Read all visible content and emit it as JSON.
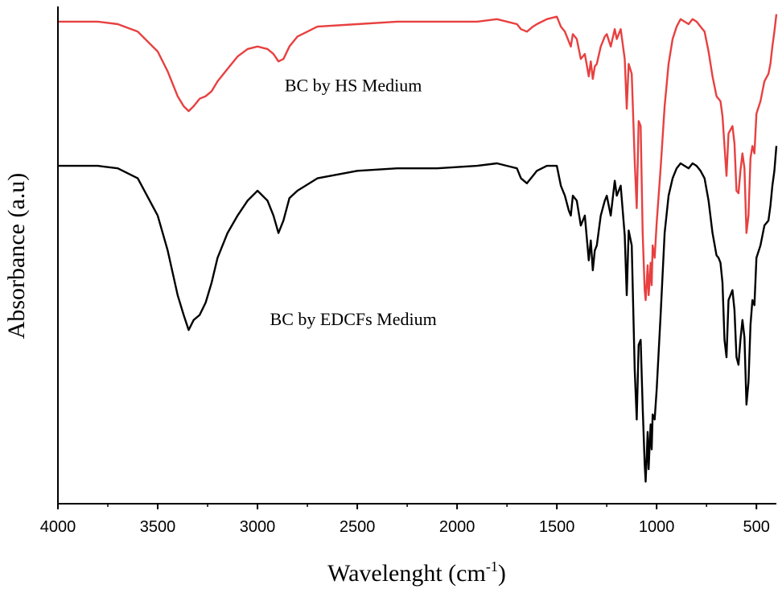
{
  "chart_data": {
    "type": "line",
    "title": "",
    "xlabel_main": "Wavelenght (cm",
    "xlabel_sup": "-1",
    "xlabel_close": ")",
    "ylabel": "Absorbance (a.u)",
    "xlim": [
      4000,
      400
    ],
    "x_reversed": true,
    "y_tick_labels": false,
    "xticks": [
      4000,
      3500,
      3000,
      2500,
      2000,
      1500,
      1000,
      500
    ],
    "grid": false,
    "annotations": [
      {
        "text": "BC by HS Medium",
        "x": 2520,
        "y": 1.62
      },
      {
        "text": "BC by EDCFs Medium",
        "x": 2520,
        "y": 0.68
      }
    ],
    "series": [
      {
        "name": "BC by HS Medium",
        "color": "#e84040",
        "x": [
          4000,
          3800,
          3700,
          3600,
          3500,
          3450,
          3400,
          3370,
          3345,
          3320,
          3290,
          3260,
          3230,
          3200,
          3150,
          3100,
          3050,
          3000,
          2950,
          2920,
          2895,
          2870,
          2840,
          2800,
          2700,
          2500,
          2300,
          2100,
          1900,
          1800,
          1700,
          1680,
          1650,
          1620,
          1600,
          1550,
          1500,
          1480,
          1460,
          1440,
          1430,
          1420,
          1400,
          1380,
          1360,
          1340,
          1330,
          1320,
          1310,
          1300,
          1280,
          1260,
          1250,
          1230,
          1210,
          1200,
          1180,
          1160,
          1150,
          1140,
          1125,
          1110,
          1100,
          1090,
          1080,
          1070,
          1060,
          1055,
          1050,
          1045,
          1040,
          1035,
          1030,
          1025,
          1020,
          1010,
          1000,
          980,
          960,
          940,
          920,
          900,
          880,
          860,
          840,
          820,
          800,
          780,
          760,
          740,
          720,
          700,
          690,
          680,
          670,
          660,
          650,
          640,
          620,
          610,
          600,
          590,
          580,
          570,
          560,
          550,
          540,
          530,
          520,
          510,
          500,
          480,
          460,
          440,
          430,
          420,
          410,
          400
        ],
        "y": [
          1.9,
          1.9,
          1.89,
          1.86,
          1.78,
          1.7,
          1.6,
          1.56,
          1.54,
          1.56,
          1.59,
          1.6,
          1.62,
          1.66,
          1.71,
          1.76,
          1.79,
          1.8,
          1.79,
          1.77,
          1.74,
          1.75,
          1.8,
          1.84,
          1.88,
          1.89,
          1.9,
          1.9,
          1.9,
          1.91,
          1.89,
          1.87,
          1.86,
          1.88,
          1.89,
          1.91,
          1.92,
          1.88,
          1.86,
          1.82,
          1.8,
          1.85,
          1.83,
          1.75,
          1.77,
          1.68,
          1.74,
          1.67,
          1.72,
          1.73,
          1.8,
          1.84,
          1.85,
          1.8,
          1.87,
          1.83,
          1.87,
          1.75,
          1.55,
          1.73,
          1.69,
          1.34,
          1.15,
          1.5,
          1.48,
          1.05,
          0.82,
          0.78,
          0.85,
          0.92,
          0.8,
          0.86,
          0.93,
          0.84,
          1.0,
          0.95,
          1.09,
          1.31,
          1.56,
          1.73,
          1.83,
          1.88,
          1.91,
          1.9,
          1.89,
          1.91,
          1.9,
          1.88,
          1.86,
          1.78,
          1.68,
          1.6,
          1.59,
          1.58,
          1.52,
          1.4,
          1.28,
          1.45,
          1.48,
          1.41,
          1.22,
          1.21,
          1.3,
          1.37,
          1.31,
          1.05,
          1.12,
          1.35,
          1.4,
          1.37,
          1.53,
          1.58,
          1.66,
          1.69,
          1.73,
          1.8,
          1.86,
          1.93
        ]
      },
      {
        "name": "BC by EDCFs Medium",
        "color": "#000000",
        "x": [
          4000,
          3800,
          3700,
          3600,
          3500,
          3450,
          3400,
          3370,
          3345,
          3320,
          3290,
          3260,
          3230,
          3200,
          3150,
          3100,
          3050,
          3000,
          2950,
          2920,
          2895,
          2870,
          2840,
          2800,
          2700,
          2500,
          2300,
          2100,
          1900,
          1800,
          1700,
          1680,
          1650,
          1620,
          1600,
          1550,
          1500,
          1480,
          1460,
          1440,
          1430,
          1420,
          1400,
          1380,
          1360,
          1340,
          1330,
          1320,
          1310,
          1300,
          1280,
          1260,
          1250,
          1230,
          1210,
          1200,
          1180,
          1160,
          1150,
          1140,
          1125,
          1110,
          1100,
          1090,
          1080,
          1070,
          1060,
          1055,
          1050,
          1045,
          1040,
          1035,
          1030,
          1025,
          1020,
          1010,
          1000,
          980,
          960,
          940,
          920,
          900,
          880,
          860,
          840,
          820,
          800,
          780,
          760,
          740,
          720,
          700,
          690,
          680,
          670,
          660,
          650,
          640,
          620,
          610,
          600,
          590,
          580,
          570,
          560,
          550,
          540,
          530,
          520,
          510,
          500,
          480,
          460,
          440,
          430,
          420,
          410,
          400
        ],
        "y": [
          1.32,
          1.32,
          1.31,
          1.27,
          1.12,
          0.98,
          0.8,
          0.72,
          0.66,
          0.7,
          0.72,
          0.77,
          0.85,
          0.95,
          1.05,
          1.12,
          1.18,
          1.22,
          1.18,
          1.12,
          1.05,
          1.1,
          1.19,
          1.22,
          1.27,
          1.3,
          1.31,
          1.31,
          1.32,
          1.33,
          1.31,
          1.27,
          1.25,
          1.28,
          1.3,
          1.32,
          1.32,
          1.24,
          1.2,
          1.14,
          1.12,
          1.2,
          1.18,
          1.08,
          1.12,
          0.94,
          1.02,
          0.9,
          0.98,
          1.0,
          1.12,
          1.18,
          1.2,
          1.12,
          1.26,
          1.2,
          1.24,
          1.04,
          0.8,
          1.06,
          1.0,
          0.5,
          0.3,
          0.6,
          0.62,
          0.35,
          0.12,
          0.05,
          0.15,
          0.25,
          0.1,
          0.2,
          0.28,
          0.18,
          0.32,
          0.3,
          0.42,
          0.72,
          1.05,
          1.2,
          1.27,
          1.31,
          1.33,
          1.32,
          1.31,
          1.33,
          1.32,
          1.3,
          1.27,
          1.18,
          1.05,
          0.96,
          0.95,
          0.93,
          0.85,
          0.62,
          0.55,
          0.78,
          0.82,
          0.74,
          0.55,
          0.52,
          0.62,
          0.7,
          0.63,
          0.36,
          0.45,
          0.68,
          0.78,
          0.76,
          0.95,
          1.0,
          1.08,
          1.1,
          1.16,
          1.24,
          1.3,
          1.4
        ]
      }
    ]
  }
}
